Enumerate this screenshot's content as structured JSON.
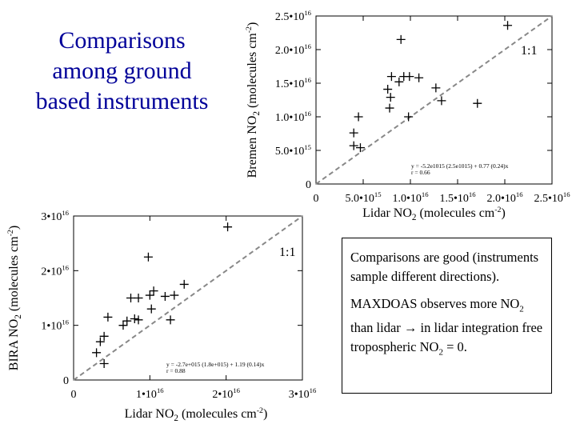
{
  "title": {
    "line1": "Comparisons",
    "line2": "among ground",
    "line3": "based instruments"
  },
  "notes": {
    "p1": "Comparisons are good (instruments sample different directions).",
    "p2_pre": " MAXDOAS observes more NO",
    "p2_sub": "2",
    "p2_mid": " than lidar ",
    "p2_arrow": "→",
    "p2_post": " in lidar integration free tropospheric NO",
    "p2_sub2": "2",
    "p2_end": " = 0."
  },
  "colors": {
    "title": "#000099",
    "one_to_one_line": "#888888",
    "markers": "#000000"
  },
  "chart_data": [
    {
      "type": "scatter",
      "marker": "plus",
      "xlabel": "Lidar NO2  (molecules cm-2)",
      "ylabel": "Bremen NO2  (molecules cm-2)",
      "xlim": [
        0,
        2.5e+16
      ],
      "ylim": [
        0,
        2.5e+16
      ],
      "x_ticks": [
        0,
        5000000000000000.0,
        1e+16,
        1.5e+16,
        2e+16,
        2.5e+16
      ],
      "x_tick_labels": [
        "0",
        "5.0•10^15",
        "1.0•10^16",
        "1.5•10^16",
        "2.0•10^16",
        "2.5•10^16"
      ],
      "y_ticks": [
        0,
        5000000000000000.0,
        1e+16,
        1.5e+16,
        2e+16,
        2.5e+16
      ],
      "y_tick_labels": [
        "0",
        "5.0•10^15",
        "1.0•10^16",
        "1.5•10^16",
        "2.0•10^16",
        "2.5•10^16"
      ],
      "one_to_one": true,
      "annotation": "1:1",
      "fit_text": [
        "y = -5.2e1015 (2.5e1015) + 0.77 (0.24)x",
        "r = 0.66"
      ],
      "points": [
        {
          "x": 4000000000000000.0,
          "y": 5700000000000000.0
        },
        {
          "x": 4000000000000000.0,
          "y": 7600000000000000.0
        },
        {
          "x": 4700000000000000.0,
          "y": 5400000000000000.0
        },
        {
          "x": 4500000000000000.0,
          "y": 1e+16
        },
        {
          "x": 7800000000000000.0,
          "y": 1.13e+16
        },
        {
          "x": 7900000000000000.0,
          "y": 1.29e+16
        },
        {
          "x": 7600000000000000.0,
          "y": 1.41e+16
        },
        {
          "x": 8000000000000000.0,
          "y": 1.6e+16
        },
        {
          "x": 8800000000000000.0,
          "y": 1.52e+16
        },
        {
          "x": 9300000000000000.0,
          "y": 1.6e+16
        },
        {
          "x": 9900000000000000.0,
          "y": 1.6e+16
        },
        {
          "x": 9800000000000000.0,
          "y": 1e+16
        },
        {
          "x": 1.09e+16,
          "y": 1.58e+16
        },
        {
          "x": 1.27e+16,
          "y": 1.43e+16
        },
        {
          "x": 1.33e+16,
          "y": 1.24e+16
        },
        {
          "x": 9000000000000000.0,
          "y": 2.15e+16
        },
        {
          "x": 1.71e+16,
          "y": 1.2e+16
        },
        {
          "x": 2.03e+16,
          "y": 2.36e+16
        }
      ]
    },
    {
      "type": "scatter",
      "marker": "plus",
      "xlabel": "Lidar NO2  (molecules cm-2)",
      "ylabel": "BIRA NO2  (molecules cm-2)",
      "xlim": [
        0,
        3e+16
      ],
      "ylim": [
        0,
        3e+16
      ],
      "x_ticks": [
        0,
        1e+16,
        2e+16,
        3e+16
      ],
      "x_tick_labels": [
        "0",
        "1•10^16",
        "2•10^16",
        "3•10^16"
      ],
      "y_ticks": [
        0,
        1e+16,
        2e+16,
        3e+16
      ],
      "y_tick_labels": [
        "0",
        "1•10^16",
        "2•10^16",
        "3•10^16"
      ],
      "one_to_one": true,
      "annotation": "1:1",
      "fit_text": [
        "y = -2.7e+015 (1.8e+015) + 1.19 (0.14)x",
        "r = 0.88"
      ],
      "points": [
        {
          "x": 3000000000000000.0,
          "y": 5000000000000000.0
        },
        {
          "x": 3500000000000000.0,
          "y": 7000000000000000.0
        },
        {
          "x": 4000000000000000.0,
          "y": 3000000000000000.0
        },
        {
          "x": 4000000000000000.0,
          "y": 8000000000000000.0
        },
        {
          "x": 4500000000000000.0,
          "y": 1.15e+16
        },
        {
          "x": 6500000000000000.0,
          "y": 1e+16
        },
        {
          "x": 7000000000000000.0,
          "y": 1.08e+16
        },
        {
          "x": 7500000000000000.0,
          "y": 1.5e+16
        },
        {
          "x": 8000000000000000.0,
          "y": 1.12e+16
        },
        {
          "x": 8500000000000000.0,
          "y": 1.5e+16
        },
        {
          "x": 8500000000000000.0,
          "y": 1.1e+16
        },
        {
          "x": 9800000000000000.0,
          "y": 2.25e+16
        },
        {
          "x": 1e+16,
          "y": 1.55e+16
        },
        {
          "x": 1.02e+16,
          "y": 1.3e+16
        },
        {
          "x": 1.05e+16,
          "y": 1.63e+16
        },
        {
          "x": 1.2e+16,
          "y": 1.53e+16
        },
        {
          "x": 1.27e+16,
          "y": 1.1e+16
        },
        {
          "x": 1.32e+16,
          "y": 1.55e+16
        },
        {
          "x": 1.45e+16,
          "y": 1.75e+16
        },
        {
          "x": 2.02e+16,
          "y": 2.8e+16
        }
      ]
    }
  ]
}
